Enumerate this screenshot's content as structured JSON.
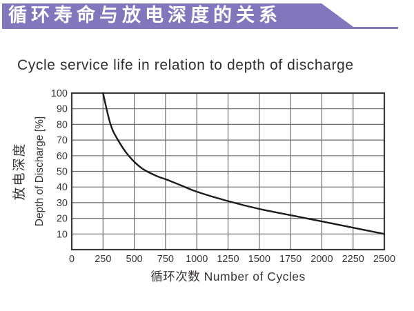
{
  "banner": {
    "title": "循环寿命与放电深度的关系",
    "bg_color": "#8277BD",
    "text_color": "#FFFFFF"
  },
  "title": "Cycle service life in relation to depth of discharge",
  "chart_data": {
    "type": "line",
    "title": "Cycle service life in relation to depth of discharge",
    "xlabel": "循环次数 Number of Cycles",
    "ylabel_cn": "放电深度",
    "ylabel_en": "Depth of Discharge [%]",
    "x": [
      250,
      310,
      370,
      455,
      560,
      680,
      750,
      875,
      1000,
      1250,
      1500,
      1750,
      2000,
      2250,
      2500
    ],
    "y": [
      100,
      80,
      70,
      60,
      52,
      47,
      45,
      41,
      37,
      31,
      26,
      22,
      18,
      14,
      10
    ],
    "x_ticks": [
      0,
      250,
      500,
      750,
      1000,
      1250,
      1500,
      1750,
      2000,
      2250,
      2500
    ],
    "y_ticks": [
      10,
      20,
      30,
      40,
      50,
      60,
      70,
      80,
      90,
      100
    ],
    "xlim": [
      0,
      2500
    ],
    "ylim": [
      0,
      100
    ],
    "grid": true,
    "legend": "none",
    "line_color": "#1D1A1B",
    "grid_color": "#6E6A6B",
    "border_color": "#3C3839",
    "tick_label_color": "#3A3536",
    "axis_title_color": "#3A3536"
  }
}
